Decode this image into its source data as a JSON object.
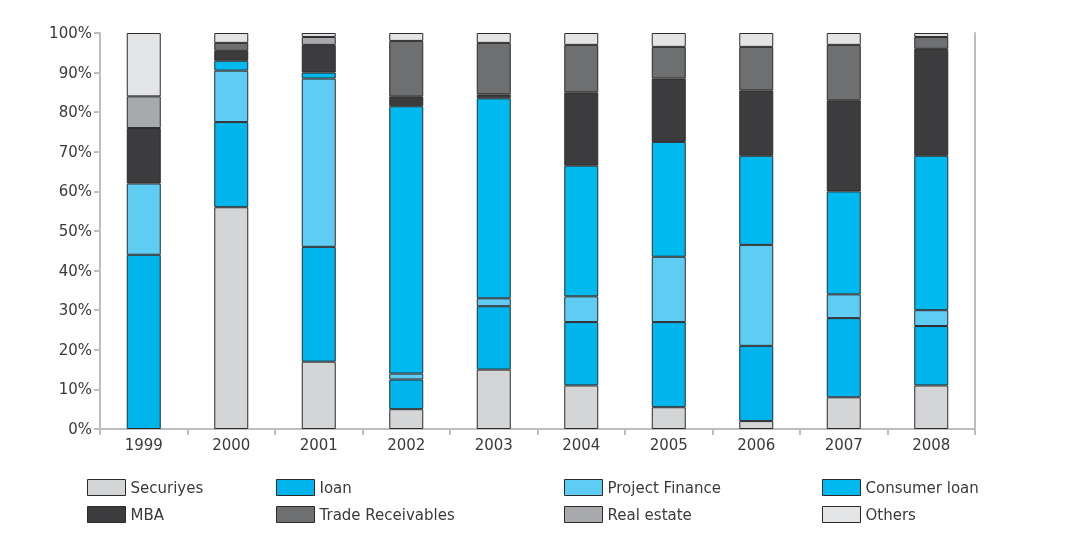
{
  "chart_data": {
    "type": "bar",
    "stacked": true,
    "categories": [
      "1999",
      "2000",
      "2001",
      "2002",
      "2003",
      "2004",
      "2005",
      "2006",
      "2007",
      "2008"
    ],
    "ylim": [
      0,
      100
    ],
    "yticks": [
      {
        "value": 0,
        "label": "0%"
      },
      {
        "value": 10,
        "label": "10%"
      },
      {
        "value": 20,
        "label": "20%"
      },
      {
        "value": 30,
        "label": "30%"
      },
      {
        "value": 40,
        "label": "40%"
      },
      {
        "value": 50,
        "label": "50%"
      },
      {
        "value": 60,
        "label": "60%"
      },
      {
        "value": 70,
        "label": "70%"
      },
      {
        "value": 80,
        "label": "80%"
      },
      {
        "value": 90,
        "label": "90%"
      },
      {
        "value": 100,
        "label": "100%"
      }
    ],
    "grid": false,
    "legend": "bottom",
    "series": [
      {
        "name": "Securiyes",
        "color": "#d4d5d7",
        "values": [
          0,
          56,
          17,
          5,
          15,
          11,
          5.5,
          2,
          8,
          11
        ]
      },
      {
        "name": "Ioan",
        "color": "#00b4ec",
        "values": [
          44,
          21.5,
          29,
          7.5,
          16,
          16,
          21.5,
          19,
          20,
          15
        ]
      },
      {
        "name": "Project Finance",
        "color": "#5fcdf3",
        "values": [
          18,
          13,
          42.5,
          1.5,
          2,
          6.5,
          16.5,
          25.5,
          6,
          4
        ]
      },
      {
        "name": "Consumer loan",
        "color": "#00b9ef",
        "values": [
          0,
          2.5,
          1.5,
          67.5,
          50.5,
          33,
          29,
          22.5,
          26,
          39
        ]
      },
      {
        "name": "MBA",
        "color": "#3c3c3e",
        "values": [
          14,
          2.5,
          7,
          2.5,
          1,
          18.5,
          16,
          16.5,
          23,
          27
        ]
      },
      {
        "name": "Trade Receivables",
        "color": "#6e6f71",
        "values": [
          0,
          2,
          0,
          14,
          13,
          12,
          8,
          11,
          14,
          3
        ]
      },
      {
        "name": "Real estate",
        "color": "#a7a9ac",
        "values": [
          8,
          0,
          2,
          0,
          0,
          0,
          0,
          0,
          0,
          0
        ]
      },
      {
        "name": "Others",
        "color": "#e3e4e5",
        "values": [
          16,
          2.5,
          1,
          2,
          2.5,
          3,
          3.5,
          3.5,
          3,
          1
        ]
      }
    ]
  }
}
